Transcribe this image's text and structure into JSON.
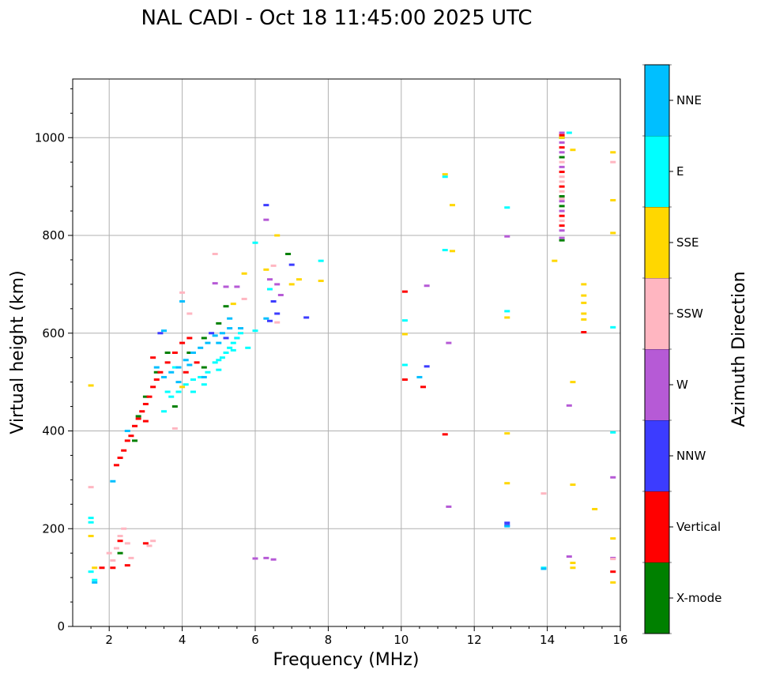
{
  "chart_data": {
    "type": "scatter",
    "title": "NAL CADI - Oct 18 11:45:00 2025 UTC",
    "xlabel": "Frequency (MHz)",
    "ylabel": "Virtual height (km)",
    "colorbar_label": "Azimuth Direction",
    "xlim": [
      1,
      16
    ],
    "ylim": [
      0,
      1120
    ],
    "xticks": [
      2,
      4,
      6,
      8,
      10,
      12,
      14,
      16
    ],
    "yticks": [
      0,
      200,
      400,
      600,
      800,
      1000
    ],
    "grid": true,
    "categories": [
      {
        "name": "X-mode",
        "color": "#008000"
      },
      {
        "name": "Vertical",
        "color": "#ff0000"
      },
      {
        "name": "NNW",
        "color": "#3c3cff"
      },
      {
        "name": "W",
        "color": "#b65ad6"
      },
      {
        "name": "SSW",
        "color": "#ffb6c1"
      },
      {
        "name": "SSE",
        "color": "#ffd700"
      },
      {
        "name": "E",
        "color": "#00ffff"
      },
      {
        "name": "NNE",
        "color": "#00bfff"
      }
    ],
    "series": [
      {
        "name": "X-mode",
        "points": [
          [
            2.7,
            380
          ],
          [
            2.8,
            430
          ],
          [
            3.0,
            470
          ],
          [
            3.3,
            520
          ],
          [
            3.8,
            450
          ],
          [
            4.2,
            560
          ],
          [
            4.6,
            590
          ],
          [
            5.0,
            620
          ],
          [
            5.2,
            655
          ],
          [
            6.9,
            762
          ],
          [
            14.4,
            790
          ],
          [
            14.4,
            860
          ],
          [
            14.4,
            880
          ],
          [
            14.4,
            960
          ],
          [
            14.4,
            1000
          ],
          [
            4.6,
            530
          ],
          [
            3.6,
            560
          ],
          [
            2.3,
            150
          ]
        ]
      },
      {
        "name": "Vertical",
        "points": [
          [
            2.2,
            330
          ],
          [
            2.3,
            345
          ],
          [
            2.4,
            360
          ],
          [
            2.5,
            380
          ],
          [
            2.6,
            390
          ],
          [
            2.7,
            410
          ],
          [
            2.8,
            425
          ],
          [
            2.9,
            440
          ],
          [
            3.0,
            455
          ],
          [
            3.1,
            470
          ],
          [
            3.2,
            490
          ],
          [
            3.3,
            505
          ],
          [
            3.4,
            520
          ],
          [
            3.6,
            540
          ],
          [
            3.8,
            560
          ],
          [
            4.0,
            580
          ],
          [
            4.2,
            590
          ],
          [
            3.2,
            550
          ],
          [
            3.0,
            420
          ],
          [
            2.1,
            120
          ],
          [
            2.3,
            175
          ],
          [
            2.5,
            125
          ],
          [
            3.0,
            170
          ],
          [
            1.8,
            120
          ],
          [
            10.1,
            505
          ],
          [
            10.1,
            685
          ],
          [
            10.6,
            490
          ],
          [
            11.2,
            393
          ],
          [
            15.0,
            602
          ],
          [
            15.8,
            112
          ],
          [
            14.4,
            820
          ],
          [
            14.4,
            840
          ],
          [
            14.4,
            900
          ],
          [
            14.4,
            930
          ],
          [
            14.4,
            980
          ],
          [
            14.4,
            1005
          ],
          [
            4.4,
            540
          ],
          [
            4.1,
            520
          ]
        ]
      },
      {
        "name": "NNW",
        "points": [
          [
            6.3,
            862
          ],
          [
            6.5,
            665
          ],
          [
            6.4,
            625
          ],
          [
            6.6,
            640
          ],
          [
            7.0,
            740
          ],
          [
            7.4,
            632
          ],
          [
            12.9,
            212
          ],
          [
            12.9,
            207
          ],
          [
            10.7,
            532
          ],
          [
            4.8,
            600
          ],
          [
            5.2,
            590
          ],
          [
            5.5,
            590
          ],
          [
            3.4,
            600
          ]
        ]
      },
      {
        "name": "W",
        "points": [
          [
            6.0,
            139
          ],
          [
            6.3,
            140
          ],
          [
            6.5,
            137
          ],
          [
            6.3,
            832
          ],
          [
            6.4,
            710
          ],
          [
            6.6,
            700
          ],
          [
            6.7,
            678
          ],
          [
            10.7,
            697
          ],
          [
            11.3,
            580
          ],
          [
            11.3,
            245
          ],
          [
            12.9,
            798
          ],
          [
            14.6,
            452
          ],
          [
            14.6,
            143
          ],
          [
            15.8,
            305
          ],
          [
            15.8,
            140
          ],
          [
            14.4,
            795
          ],
          [
            14.4,
            810
          ],
          [
            14.4,
            850
          ],
          [
            14.4,
            870
          ],
          [
            14.4,
            940
          ],
          [
            14.4,
            970
          ],
          [
            14.4,
            990
          ],
          [
            14.4,
            1010
          ],
          [
            5.2,
            695
          ],
          [
            5.5,
            695
          ],
          [
            4.9,
            702
          ]
        ]
      },
      {
        "name": "SSW",
        "points": [
          [
            2.0,
            150
          ],
          [
            2.1,
            135
          ],
          [
            2.2,
            160
          ],
          [
            2.3,
            185
          ],
          [
            2.4,
            200
          ],
          [
            2.5,
            170
          ],
          [
            2.6,
            140
          ],
          [
            3.1,
            165
          ],
          [
            3.2,
            175
          ],
          [
            4.2,
            640
          ],
          [
            4.0,
            683
          ],
          [
            4.9,
            762
          ],
          [
            5.7,
            670
          ],
          [
            6.5,
            738
          ],
          [
            13.9,
            272
          ],
          [
            15.8,
            950
          ],
          [
            15.8,
            138
          ],
          [
            14.4,
            830
          ],
          [
            14.4,
            875
          ],
          [
            14.4,
            890
          ],
          [
            14.4,
            910
          ],
          [
            14.4,
            920
          ],
          [
            14.4,
            950
          ],
          [
            3.8,
            405
          ],
          [
            1.5,
            285
          ],
          [
            6.6,
            622
          ]
        ]
      },
      {
        "name": "SSE",
        "points": [
          [
            1.5,
            493
          ],
          [
            1.5,
            185
          ],
          [
            1.6,
            120
          ],
          [
            5.7,
            722
          ],
          [
            6.3,
            730
          ],
          [
            6.6,
            800
          ],
          [
            7.0,
            700
          ],
          [
            7.2,
            710
          ],
          [
            7.8,
            707
          ],
          [
            10.1,
            598
          ],
          [
            11.2,
            925
          ],
          [
            11.4,
            768
          ],
          [
            11.4,
            862
          ],
          [
            12.9,
            632
          ],
          [
            12.9,
            395
          ],
          [
            12.9,
            293
          ],
          [
            14.2,
            748
          ],
          [
            14.7,
            500
          ],
          [
            14.7,
            290
          ],
          [
            14.7,
            130
          ],
          [
            14.7,
            120
          ],
          [
            14.7,
            975
          ],
          [
            15.0,
            700
          ],
          [
            15.0,
            677
          ],
          [
            15.0,
            662
          ],
          [
            15.0,
            640
          ],
          [
            15.0,
            628
          ],
          [
            15.3,
            240
          ],
          [
            15.8,
            970
          ],
          [
            15.8,
            872
          ],
          [
            15.8,
            805
          ],
          [
            15.8,
            180
          ],
          [
            15.8,
            90
          ],
          [
            14.4,
            1000
          ],
          [
            5.4,
            660
          ],
          [
            4.0,
            490
          ]
        ]
      },
      {
        "name": "E",
        "points": [
          [
            1.5,
            112
          ],
          [
            1.6,
            95
          ],
          [
            1.5,
            222
          ],
          [
            1.5,
            213
          ],
          [
            3.5,
            440
          ],
          [
            3.7,
            470
          ],
          [
            3.9,
            480
          ],
          [
            4.1,
            495
          ],
          [
            4.3,
            505
          ],
          [
            4.5,
            510
          ],
          [
            4.7,
            520
          ],
          [
            4.9,
            540
          ],
          [
            5.0,
            545
          ],
          [
            5.1,
            550
          ],
          [
            5.2,
            560
          ],
          [
            5.3,
            570
          ],
          [
            5.4,
            580
          ],
          [
            5.5,
            590
          ],
          [
            5.6,
            600
          ],
          [
            4.3,
            480
          ],
          [
            4.6,
            495
          ],
          [
            5.0,
            525
          ],
          [
            5.4,
            565
          ],
          [
            6.0,
            605
          ],
          [
            6.0,
            785
          ],
          [
            6.4,
            690
          ],
          [
            7.8,
            748
          ],
          [
            10.1,
            626
          ],
          [
            10.1,
            535
          ],
          [
            11.2,
            920
          ],
          [
            11.2,
            770
          ],
          [
            12.9,
            857
          ],
          [
            12.9,
            645
          ],
          [
            14.6,
            1010
          ],
          [
            15.8,
            612
          ],
          [
            15.8,
            397
          ],
          [
            13.9,
            120
          ],
          [
            3.8,
            530
          ],
          [
            3.6,
            480
          ],
          [
            5.8,
            570
          ]
        ]
      },
      {
        "name": "NNE",
        "points": [
          [
            1.6,
            90
          ],
          [
            2.1,
            297
          ],
          [
            2.5,
            400
          ],
          [
            3.3,
            530
          ],
          [
            3.5,
            510
          ],
          [
            3.7,
            520
          ],
          [
            3.9,
            530
          ],
          [
            4.1,
            545
          ],
          [
            4.3,
            560
          ],
          [
            4.5,
            570
          ],
          [
            4.7,
            580
          ],
          [
            4.9,
            595
          ],
          [
            5.1,
            600
          ],
          [
            5.3,
            610
          ],
          [
            5.6,
            610
          ],
          [
            4.0,
            665
          ],
          [
            3.5,
            605
          ],
          [
            4.6,
            510
          ],
          [
            6.3,
            630
          ],
          [
            10.5,
            510
          ],
          [
            12.9,
            205
          ],
          [
            13.9,
            118
          ],
          [
            3.9,
            500
          ],
          [
            4.2,
            535
          ],
          [
            5.0,
            580
          ],
          [
            5.3,
            630
          ]
        ]
      }
    ]
  }
}
